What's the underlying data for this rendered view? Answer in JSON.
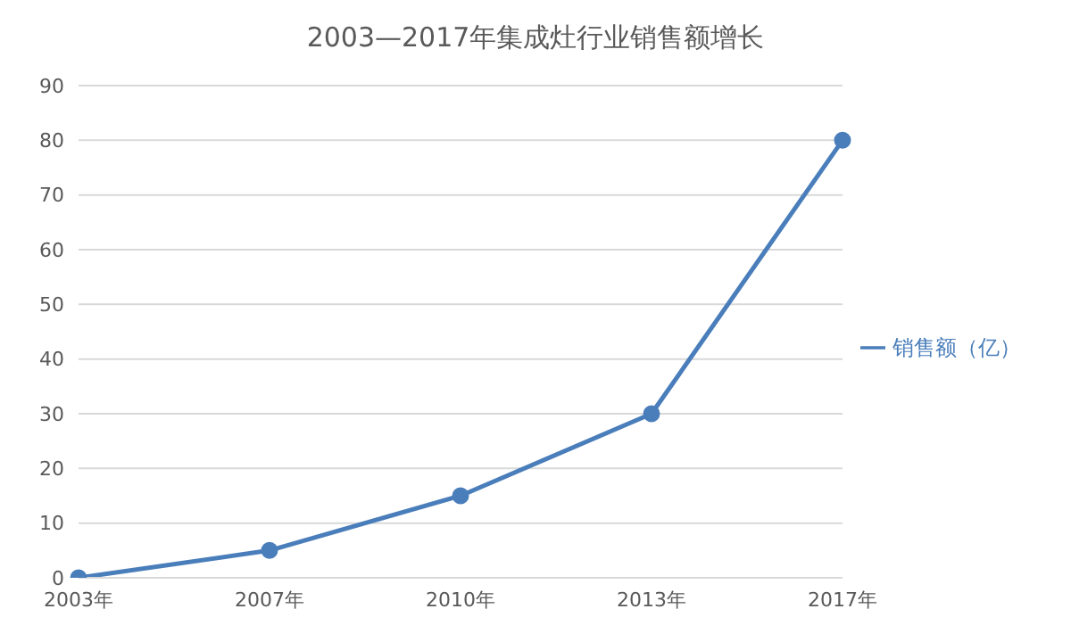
{
  "chart_data": {
    "type": "line",
    "title": "2003—2017年集成灶行业销售额增长",
    "categories": [
      "2003年",
      "2007年",
      "2010年",
      "2013年",
      "2017年"
    ],
    "series": [
      {
        "name": "销售额（亿）",
        "color": "#4a7ebb",
        "values": [
          0,
          5,
          15,
          30,
          80
        ]
      }
    ],
    "ylim": [
      0,
      90
    ],
    "yticks": [
      0,
      10,
      20,
      30,
      40,
      50,
      60,
      70,
      80,
      90
    ],
    "grid": "y",
    "legend": "right",
    "marker": "circle",
    "line_style": "solid"
  }
}
